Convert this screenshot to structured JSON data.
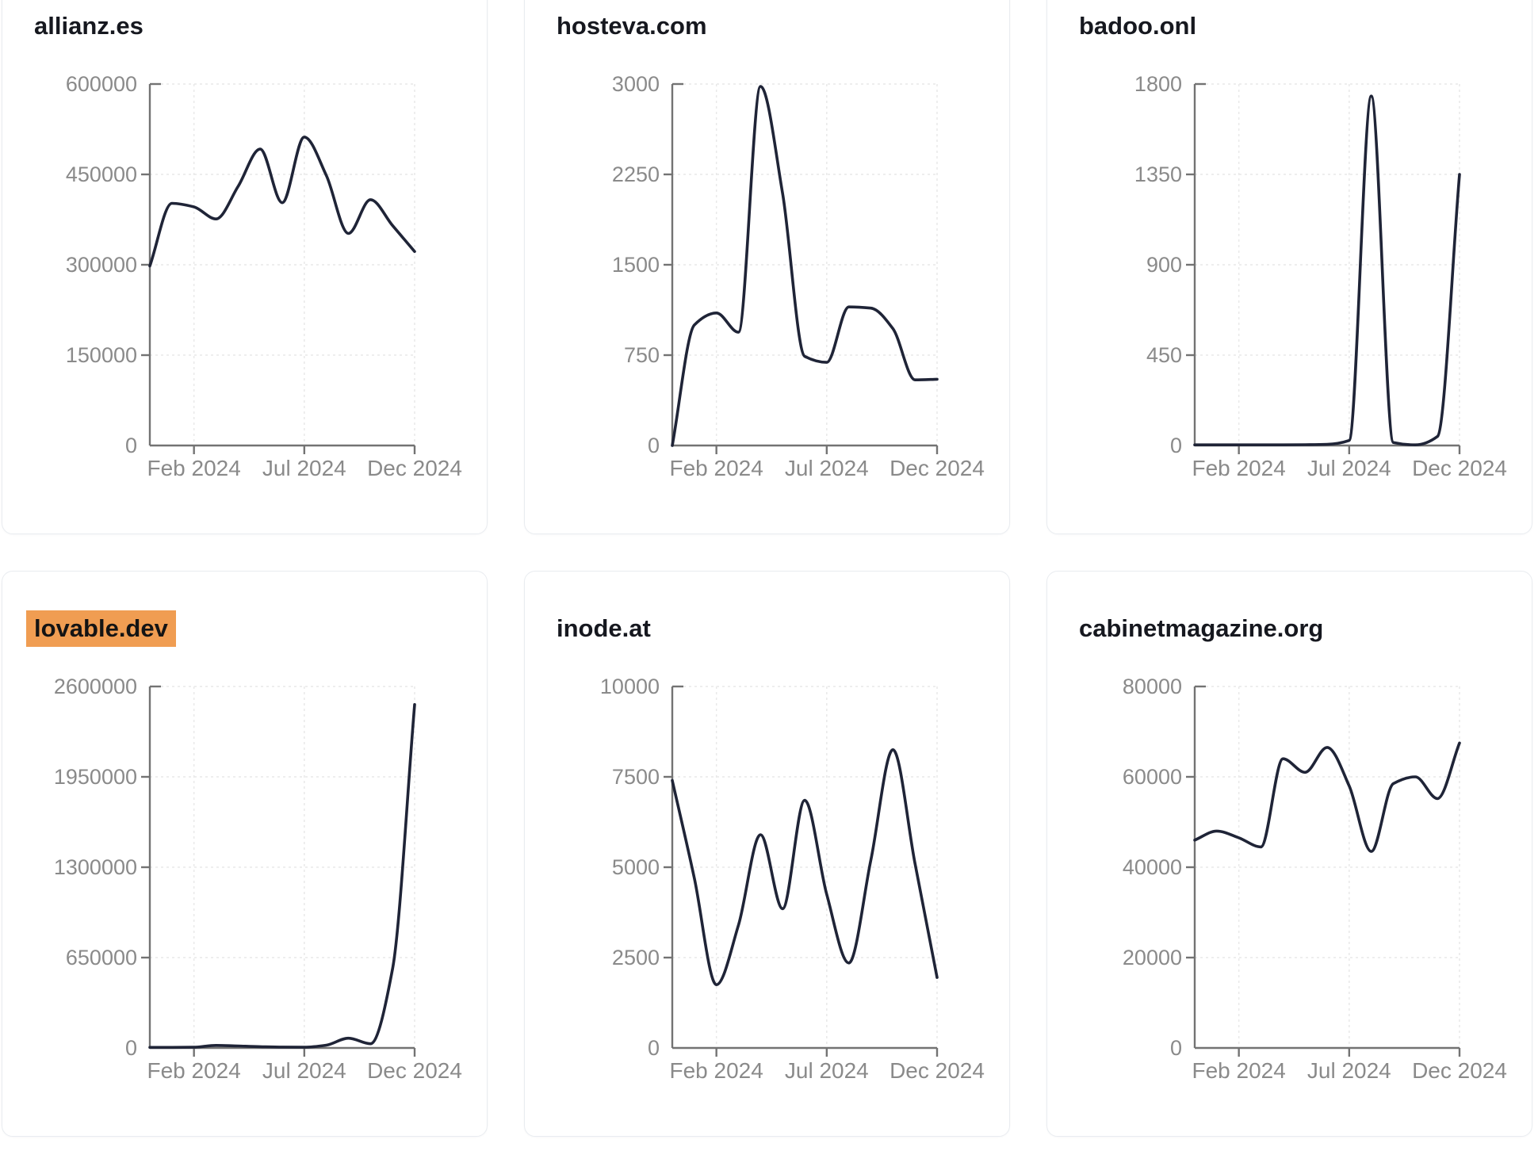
{
  "page": {
    "background": "#ffffff"
  },
  "colors": {
    "line": "#1f2437",
    "axis": "#737373",
    "tick_label": "#8a8a8a",
    "grid": "#e9e9e9",
    "title": "#16181f",
    "highlight_bg": "#f09d52",
    "highlight_text": "#141414",
    "card_border": "#e9ecf0",
    "card_bg": "#ffffff"
  },
  "x_tick_labels": [
    "Feb 2024",
    "Jul 2024",
    "Dec 2024"
  ],
  "x_tick_indices": [
    2,
    7,
    12
  ],
  "chart_data": [
    {
      "type": "line",
      "title": "allianz.es",
      "highlighted": false,
      "x": [
        "Dec 2023",
        "Jan 2024",
        "Feb 2024",
        "Mar 2024",
        "Apr 2024",
        "May 2024",
        "Jun 2024",
        "Jul 2024",
        "Aug 2024",
        "Sep 2024",
        "Oct 2024",
        "Nov 2024",
        "Dec 2024"
      ],
      "values": [
        298000,
        402000,
        396000,
        376000,
        430000,
        492000,
        403000,
        512000,
        448000,
        352000,
        408000,
        365000,
        322000
      ],
      "y_ticks": [
        0,
        150000,
        300000,
        450000,
        600000
      ],
      "ylim": [
        0,
        600000
      ],
      "xlabel": "",
      "ylabel": "",
      "grid": true,
      "legend": "none"
    },
    {
      "type": "line",
      "title": "hosteva.com",
      "highlighted": false,
      "x": [
        "Dec 2023",
        "Jan 2024",
        "Feb 2024",
        "Mar 2024",
        "Apr 2024",
        "May 2024",
        "Jun 2024",
        "Jul 2024",
        "Aug 2024",
        "Sep 2024",
        "Oct 2024",
        "Nov 2024",
        "Dec 2024"
      ],
      "values": [
        0,
        1000,
        1100,
        940,
        2980,
        2090,
        740,
        690,
        1150,
        1140,
        970,
        545,
        550
      ],
      "y_ticks": [
        0,
        750,
        1500,
        2250,
        3000
      ],
      "ylim": [
        0,
        3000
      ],
      "xlabel": "",
      "ylabel": "",
      "grid": true,
      "legend": "none"
    },
    {
      "type": "line",
      "title": "badoo.onl",
      "highlighted": false,
      "x": [
        "Dec 2023",
        "Jan 2024",
        "Feb 2024",
        "Mar 2024",
        "Apr 2024",
        "May 2024",
        "Jun 2024",
        "Jul 2024",
        "Aug 2024",
        "Sep 2024",
        "Oct 2024",
        "Nov 2024",
        "Dec 2024"
      ],
      "values": [
        3,
        3,
        3,
        3,
        3,
        4,
        6,
        25,
        1740,
        15,
        3,
        45,
        1350
      ],
      "y_ticks": [
        0,
        450,
        900,
        1350,
        1800
      ],
      "ylim": [
        0,
        1800
      ],
      "xlabel": "",
      "ylabel": "",
      "grid": true,
      "legend": "none"
    },
    {
      "type": "line",
      "title": "lovable.dev",
      "highlighted": true,
      "x": [
        "Dec 2023",
        "Jan 2024",
        "Feb 2024",
        "Mar 2024",
        "Apr 2024",
        "May 2024",
        "Jun 2024",
        "Jul 2024",
        "Aug 2024",
        "Sep 2024",
        "Oct 2024",
        "Nov 2024",
        "Dec 2024"
      ],
      "values": [
        4000,
        4000,
        5000,
        18000,
        14000,
        9000,
        6000,
        5000,
        20000,
        70000,
        30000,
        570000,
        2470000
      ],
      "y_ticks": [
        0,
        650000,
        1300000,
        1950000,
        2600000
      ],
      "ylim": [
        0,
        2600000
      ],
      "xlabel": "",
      "ylabel": "",
      "grid": true,
      "legend": "none"
    },
    {
      "type": "line",
      "title": "inode.at",
      "highlighted": false,
      "x": [
        "Dec 2023",
        "Jan 2024",
        "Feb 2024",
        "Mar 2024",
        "Apr 2024",
        "May 2024",
        "Jun 2024",
        "Jul 2024",
        "Aug 2024",
        "Sep 2024",
        "Oct 2024",
        "Nov 2024",
        "Dec 2024"
      ],
      "values": [
        7400,
        4700,
        1750,
        3400,
        5900,
        3850,
        6850,
        4250,
        2350,
        5200,
        8250,
        5100,
        1950
      ],
      "y_ticks": [
        0,
        2500,
        5000,
        7500,
        10000
      ],
      "ylim": [
        0,
        10000
      ],
      "xlabel": "",
      "ylabel": "",
      "grid": true,
      "legend": "none"
    },
    {
      "type": "line",
      "title": "cabinetmagazine.org",
      "highlighted": false,
      "x": [
        "Dec 2023",
        "Jan 2024",
        "Feb 2024",
        "Mar 2024",
        "Apr 2024",
        "May 2024",
        "Jun 2024",
        "Jul 2024",
        "Aug 2024",
        "Sep 2024",
        "Oct 2024",
        "Nov 2024",
        "Dec 2024"
      ],
      "values": [
        46000,
        48000,
        46500,
        44500,
        64000,
        61000,
        66500,
        58000,
        43500,
        58500,
        60000,
        55200,
        67500
      ],
      "y_ticks": [
        0,
        20000,
        40000,
        60000,
        80000
      ],
      "ylim": [
        0,
        80000
      ],
      "xlabel": "",
      "ylabel": "",
      "grid": true,
      "legend": "none"
    }
  ]
}
